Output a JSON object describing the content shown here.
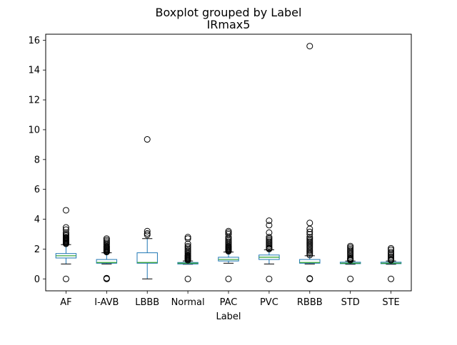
{
  "chart_data": {
    "type": "boxplot",
    "suptitle": "Boxplot grouped by Label",
    "title": "IRmax5",
    "xlabel": "Label",
    "ylabel": "",
    "ylim": [
      -0.8,
      16.4
    ],
    "yticks": [
      0,
      2,
      4,
      6,
      8,
      10,
      12,
      14,
      16
    ],
    "grid": false,
    "colors": {
      "box": "#1f77b4",
      "median": "#2ca02c",
      "whisker": "#000000",
      "flier": "#000000"
    },
    "categories": [
      "AF",
      "I-AVB",
      "LBBB",
      "Normal",
      "PAC",
      "PVC",
      "RBBB",
      "STD",
      "STE"
    ],
    "boxes": [
      {
        "label": "AF",
        "whislo": 1.0,
        "q1": 1.4,
        "med": 1.55,
        "q3": 1.7,
        "whishi": 2.3,
        "fliers": [
          0.0,
          2.35,
          2.4,
          2.45,
          2.5,
          2.55,
          2.6,
          2.65,
          2.7,
          2.75,
          2.8,
          2.9,
          3.0,
          3.1,
          3.3,
          3.45,
          4.6
        ]
      },
      {
        "label": "I-AVB",
        "whislo": 1.0,
        "q1": 1.05,
        "med": 1.1,
        "q3": 1.3,
        "whishi": 1.75,
        "fliers": [
          0.0,
          0.02,
          0.05,
          1.8,
          1.85,
          1.9,
          1.95,
          2.0,
          2.05,
          2.1,
          2.15,
          2.2,
          2.3,
          2.4,
          2.5,
          2.6,
          2.7
        ]
      },
      {
        "label": "LBBB",
        "whislo": 0.0,
        "q1": 1.05,
        "med": 1.1,
        "q3": 1.75,
        "whishi": 2.7,
        "fliers": [
          2.95,
          3.05,
          3.2,
          9.35
        ]
      },
      {
        "label": "Normal",
        "whislo": 0.98,
        "q1": 1.0,
        "med": 1.05,
        "q3": 1.1,
        "whishi": 1.2,
        "fliers": [
          0.0,
          1.25,
          1.3,
          1.35,
          1.4,
          1.45,
          1.5,
          1.55,
          1.6,
          1.7,
          1.8,
          1.9,
          2.0,
          2.1,
          2.2,
          2.35,
          2.7,
          2.8
        ]
      },
      {
        "label": "PAC",
        "whislo": 1.05,
        "q1": 1.2,
        "med": 1.3,
        "q3": 1.45,
        "whishi": 1.8,
        "fliers": [
          0.0,
          1.85,
          1.9,
          1.95,
          2.0,
          2.05,
          2.1,
          2.15,
          2.2,
          2.3,
          2.4,
          2.5,
          2.6,
          2.7,
          2.8,
          3.0,
          3.1,
          3.2
        ]
      },
      {
        "label": "PVC",
        "whislo": 1.0,
        "q1": 1.3,
        "med": 1.45,
        "q3": 1.6,
        "whishi": 1.95,
        "fliers": [
          0.0,
          2.0,
          2.05,
          2.1,
          2.2,
          2.3,
          2.4,
          2.5,
          2.6,
          2.7,
          2.8,
          3.1,
          3.6,
          3.9
        ]
      },
      {
        "label": "RBBB",
        "whislo": 1.0,
        "q1": 1.05,
        "med": 1.1,
        "q3": 1.3,
        "whishi": 1.55,
        "fliers": [
          0.0,
          0.03,
          1.6,
          1.7,
          1.8,
          1.9,
          2.0,
          2.1,
          2.2,
          2.3,
          2.4,
          2.5,
          2.6,
          2.7,
          2.8,
          3.0,
          3.15,
          3.35,
          3.75,
          15.6
        ]
      },
      {
        "label": "STD",
        "whislo": 0.98,
        "q1": 1.02,
        "med": 1.05,
        "q3": 1.12,
        "whishi": 1.2,
        "fliers": [
          0.0,
          1.25,
          1.3,
          1.35,
          1.4,
          1.5,
          1.6,
          1.7,
          1.8,
          1.9,
          2.0,
          2.1,
          2.2
        ]
      },
      {
        "label": "STE",
        "whislo": 0.98,
        "q1": 1.02,
        "med": 1.05,
        "q3": 1.12,
        "whishi": 1.2,
        "fliers": [
          0.0,
          1.25,
          1.3,
          1.4,
          1.5,
          1.6,
          1.7,
          1.8,
          1.95,
          2.05
        ]
      }
    ]
  }
}
